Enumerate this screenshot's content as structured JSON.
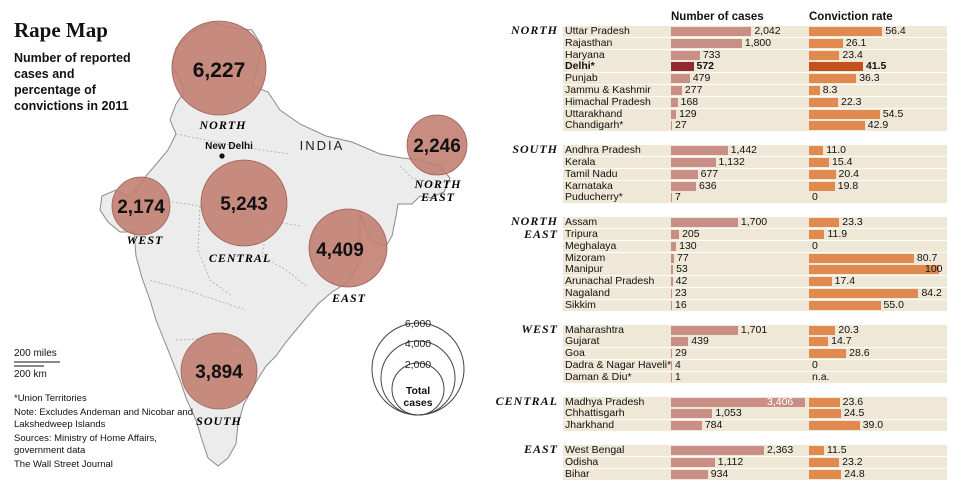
{
  "title": "Rape Map",
  "subtitle": "Number of reported cases and percentage of convictions in 2011",
  "scale": {
    "miles": "200 miles",
    "km": "200 km"
  },
  "notes": {
    "ut": "*Union Territories",
    "excl": "Note: Excludes Andeman and Nicobar and Lakshedweep Islands",
    "sources": "Sources: Ministry of Home Affairs, government data",
    "credit": "The Wall Street Journal"
  },
  "map": {
    "country_label": "INDIA",
    "capital_label": "New Delhi",
    "bubbles": [
      {
        "region": "NORTH",
        "label": "NORTH",
        "value": "6,227"
      },
      {
        "region": "NORTH EAST",
        "label": "NORTH EAST",
        "value": "2,246"
      },
      {
        "region": "WEST",
        "label": "WEST",
        "value": "2,174"
      },
      {
        "region": "CENTRAL",
        "label": "CENTRAL",
        "value": "5,243"
      },
      {
        "region": "EAST",
        "label": "EAST",
        "value": "4,409"
      },
      {
        "region": "SOUTH",
        "label": "SOUTH",
        "value": "3,894"
      }
    ],
    "legend": {
      "values": [
        "6,000",
        "4,000",
        "2,000"
      ],
      "label": "Total cases"
    }
  },
  "chart_data": {
    "type": "bar",
    "title": "Rape Map",
    "columns": {
      "cases": "Number of cases",
      "rate": "Conviction rate"
    },
    "highlight": "Delhi*",
    "regions": [
      {
        "name": "NORTH",
        "rows": [
          {
            "state": "Uttar Pradesh",
            "cases": 2042,
            "cases_label": "2,042",
            "rate": 56.4,
            "rate_label": "56.4"
          },
          {
            "state": "Rajasthan",
            "cases": 1800,
            "cases_label": "1,800",
            "rate": 26.1,
            "rate_label": "26.1"
          },
          {
            "state": "Haryana",
            "cases": 733,
            "cases_label": "733",
            "rate": 23.4,
            "rate_label": "23.4"
          },
          {
            "state": "Delhi*",
            "cases": 572,
            "cases_label": "572",
            "rate": 41.5,
            "rate_label": "41.5"
          },
          {
            "state": "Punjab",
            "cases": 479,
            "cases_label": "479",
            "rate": 36.3,
            "rate_label": "36.3"
          },
          {
            "state": "Jammu & Kashmir",
            "cases": 277,
            "cases_label": "277",
            "rate": 8.3,
            "rate_label": "8.3"
          },
          {
            "state": "Himachal Pradesh",
            "cases": 168,
            "cases_label": "168",
            "rate": 22.3,
            "rate_label": "22.3"
          },
          {
            "state": "Uttarakhand",
            "cases": 129,
            "cases_label": "129",
            "rate": 54.5,
            "rate_label": "54.5"
          },
          {
            "state": "Chandigarh*",
            "cases": 27,
            "cases_label": "27",
            "rate": 42.9,
            "rate_label": "42.9"
          }
        ]
      },
      {
        "name": "SOUTH",
        "rows": [
          {
            "state": "Andhra Pradesh",
            "cases": 1442,
            "cases_label": "1,442",
            "rate": 11.0,
            "rate_label": "11.0"
          },
          {
            "state": "Kerala",
            "cases": 1132,
            "cases_label": "1,132",
            "rate": 15.4,
            "rate_label": "15.4"
          },
          {
            "state": "Tamil Nadu",
            "cases": 677,
            "cases_label": "677",
            "rate": 20.4,
            "rate_label": "20.4"
          },
          {
            "state": "Karnataka",
            "cases": 636,
            "cases_label": "636",
            "rate": 19.8,
            "rate_label": "19.8"
          },
          {
            "state": "Puducherry*",
            "cases": 7,
            "cases_label": "7",
            "rate": 0,
            "rate_label": "0"
          }
        ]
      },
      {
        "name": "NORTH EAST",
        "rows": [
          {
            "state": "Assam",
            "cases": 1700,
            "cases_label": "1,700",
            "rate": 23.3,
            "rate_label": "23.3"
          },
          {
            "state": "Tripura",
            "cases": 205,
            "cases_label": "205",
            "rate": 11.9,
            "rate_label": "11.9"
          },
          {
            "state": "Meghalaya",
            "cases": 130,
            "cases_label": "130",
            "rate": 0,
            "rate_label": "0"
          },
          {
            "state": "Mizoram",
            "cases": 77,
            "cases_label": "77",
            "rate": 80.7,
            "rate_label": "80.7"
          },
          {
            "state": "Manipur",
            "cases": 53,
            "cases_label": "53",
            "rate": 100,
            "rate_label": "100"
          },
          {
            "state": "Arunachal Pradesh",
            "cases": 42,
            "cases_label": "42",
            "rate": 17.4,
            "rate_label": "17.4"
          },
          {
            "state": "Nagaland",
            "cases": 23,
            "cases_label": "23",
            "rate": 84.2,
            "rate_label": "84.2"
          },
          {
            "state": "Sikkim",
            "cases": 16,
            "cases_label": "16",
            "rate": 55.0,
            "rate_label": "55.0"
          }
        ]
      },
      {
        "name": "WEST",
        "rows": [
          {
            "state": "Maharashtra",
            "cases": 1701,
            "cases_label": "1,701",
            "rate": 20.3,
            "rate_label": "20.3"
          },
          {
            "state": "Gujarat",
            "cases": 439,
            "cases_label": "439",
            "rate": 14.7,
            "rate_label": "14.7"
          },
          {
            "state": "Goa",
            "cases": 29,
            "cases_label": "29",
            "rate": 28.6,
            "rate_label": "28.6"
          },
          {
            "state": "Dadra & Nagar Haveli*",
            "cases": 4,
            "cases_label": "4",
            "rate": 0,
            "rate_label": "0"
          },
          {
            "state": "Daman & Diu*",
            "cases": 1,
            "cases_label": "1",
            "rate": null,
            "rate_label": "n.a."
          }
        ]
      },
      {
        "name": "CENTRAL",
        "rows": [
          {
            "state": "Madhya Pradesh",
            "cases": 3406,
            "cases_label": "3,406",
            "rate": 23.6,
            "rate_label": "23.6"
          },
          {
            "state": "Chhattisgarh",
            "cases": 1053,
            "cases_label": "1,053",
            "rate": 24.5,
            "rate_label": "24.5"
          },
          {
            "state": "Jharkhand",
            "cases": 784,
            "cases_label": "784",
            "rate": 39.0,
            "rate_label": "39.0"
          }
        ]
      },
      {
        "name": "EAST",
        "rows": [
          {
            "state": "West Bengal",
            "cases": 2363,
            "cases_label": "2,363",
            "rate": 11.5,
            "rate_label": "11.5"
          },
          {
            "state": "Odisha",
            "cases": 1112,
            "cases_label": "1,112",
            "rate": 23.2,
            "rate_label": "23.2"
          },
          {
            "state": "Bihar",
            "cases": 934,
            "cases_label": "934",
            "rate": 24.8,
            "rate_label": "24.8"
          }
        ]
      }
    ],
    "cases_max": 3406,
    "rate_max": 100
  },
  "colors": {
    "row_bg": "#efe8d6",
    "cases_bar": "#c98f87",
    "rate_bar": "#e08a50",
    "highlight_cases": "#8e2a30",
    "highlight_rate": "#c4511d",
    "bubble": "#c27c6f",
    "land": "#ececec"
  }
}
